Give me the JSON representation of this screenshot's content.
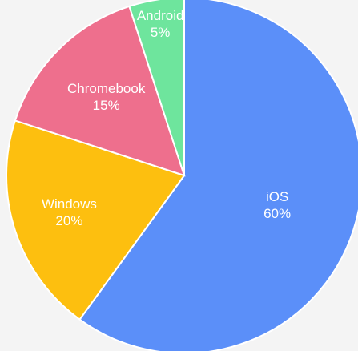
{
  "chart_data": {
    "type": "pie",
    "categories": [
      "iOS",
      "Windows",
      "Chromebook",
      "Android"
    ],
    "values": [
      60,
      20,
      15,
      5
    ],
    "value_labels": [
      "60%",
      "20%",
      "15%",
      "5%"
    ],
    "colors": [
      "#5b8ff9",
      "#fdbf0f",
      "#ee6f8d",
      "#6ee59d"
    ]
  }
}
